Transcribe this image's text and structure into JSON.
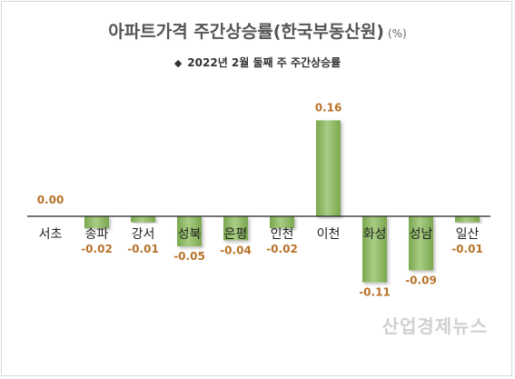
{
  "chart_data": {
    "type": "bar",
    "title": "아파트가격 주간상승률(한국부동산원)",
    "unit": "(%)",
    "series": [
      {
        "name": "2022년 2월 둘째 주 주간상승률",
        "values": [
          0.0,
          -0.02,
          -0.01,
          -0.05,
          -0.04,
          -0.02,
          0.16,
          -0.11,
          -0.09,
          -0.01
        ]
      }
    ],
    "categories": [
      "서초",
      "송파",
      "강서",
      "성북",
      "은평",
      "인천",
      "이천",
      "화성",
      "성남",
      "일산"
    ],
    "value_labels": [
      "0.00",
      "-0.02",
      "-0.01",
      "-0.05",
      "-0.04",
      "-0.02",
      "0.16",
      "-0.11",
      "-0.09",
      "-0.01"
    ],
    "ylim": [
      -0.12,
      0.17
    ],
    "grid": false,
    "legend_position": "top-center",
    "colors": {
      "bar": "#7aa84e",
      "bar_light": "#a9cc84",
      "label_negative": "#b8732a",
      "label_positive": "#b8732a",
      "label_zero": "#b8732a"
    }
  },
  "legend_marker": "◆",
  "watermark": "산업경제뉴스"
}
